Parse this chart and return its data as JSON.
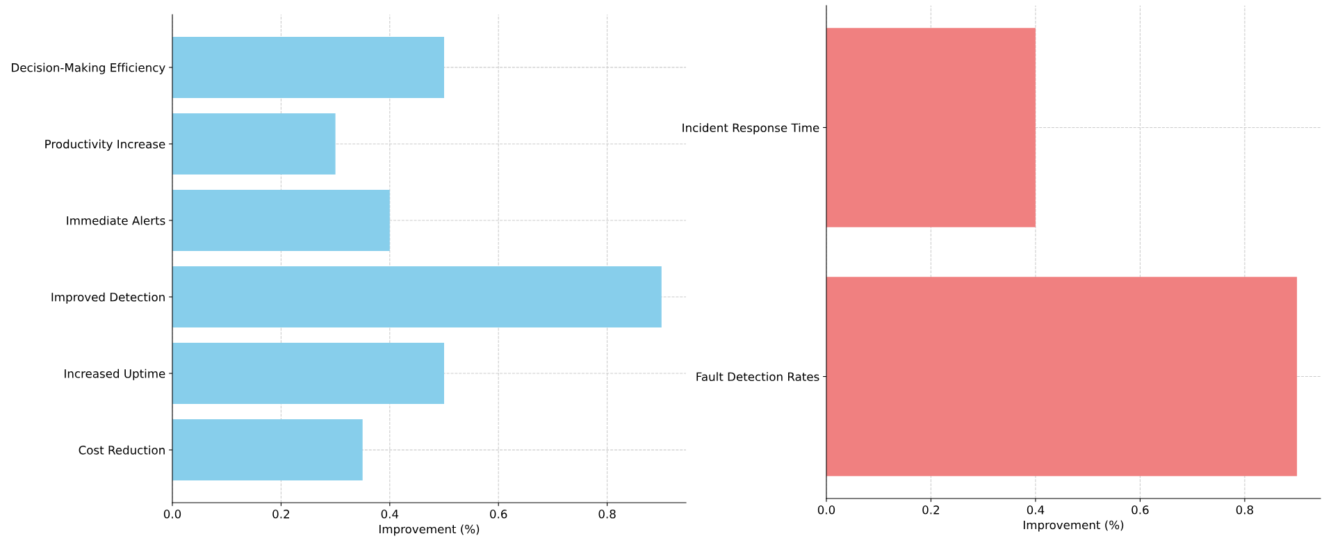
{
  "chart_data": [
    {
      "type": "bar",
      "orientation": "horizontal",
      "xlabel": "Improvement (%)",
      "categories": [
        "Decision-Making Efficiency",
        "Productivity Increase",
        "Immediate Alerts",
        "Improved Detection",
        "Increased Uptime",
        "Cost Reduction"
      ],
      "values": [
        0.5,
        0.3,
        0.4,
        0.9,
        0.5,
        0.35
      ],
      "color": "#87ceeb",
      "xlim": [
        0,
        0.945
      ],
      "xticks": [
        {
          "value": 0,
          "label": "0.0"
        },
        0.2,
        0.4,
        0.6,
        0.8
      ],
      "grid": true,
      "line_style": "dashed"
    },
    {
      "type": "bar",
      "orientation": "horizontal",
      "xlabel": "Improvement (%)",
      "categories": [
        "Incident Response Time",
        "Fault Detection Rates"
      ],
      "values": [
        0.4,
        0.9
      ],
      "color": "#f08080",
      "xlim": [
        0,
        0.945
      ],
      "xticks": [
        {
          "value": 0,
          "label": "0.0"
        },
        0.2,
        0.4,
        0.6,
        0.8
      ],
      "grid": true,
      "line_style": "dashed"
    }
  ]
}
